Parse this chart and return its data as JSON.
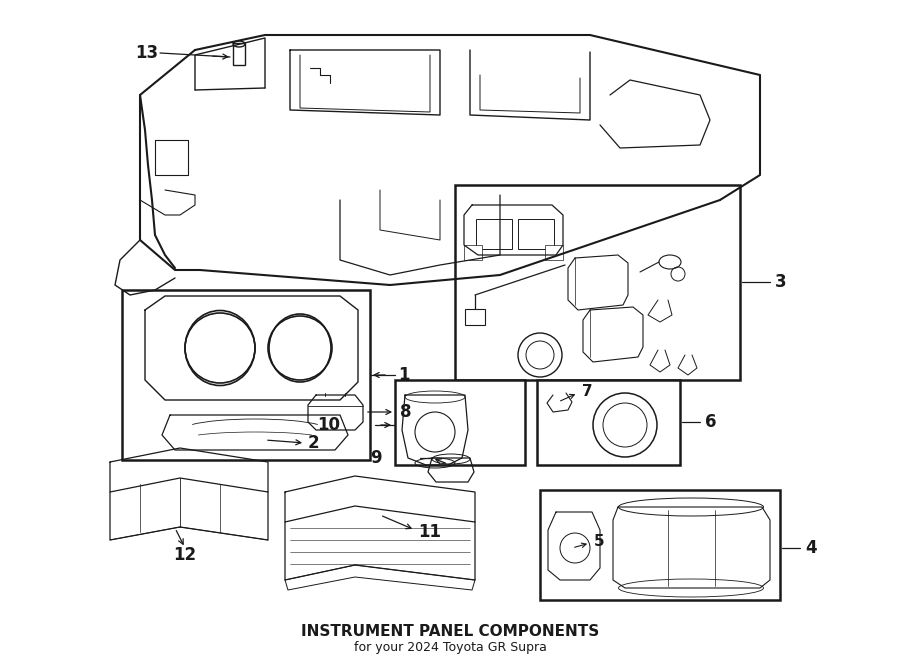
{
  "title": "INSTRUMENT PANEL COMPONENTS",
  "subtitle": "for your 2024 Toyota GR Supra",
  "bg_color": "#ffffff",
  "line_color": "#1a1a1a",
  "fig_width": 9.0,
  "fig_height": 6.61,
  "dpi": 100
}
